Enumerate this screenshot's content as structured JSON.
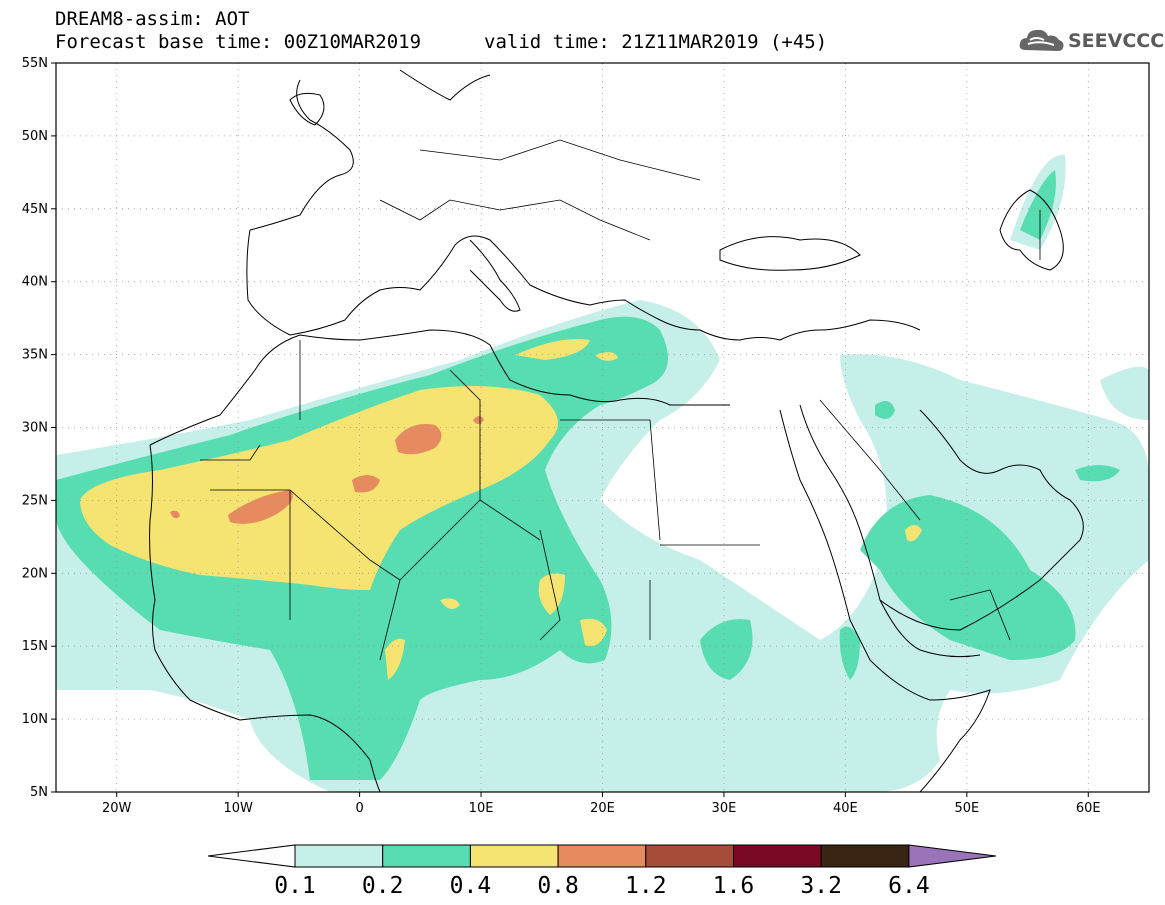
{
  "title": {
    "line1": "DREAM8-assim: AOT",
    "line2": "Forecast base time: 00Z10MAR2019",
    "valid": "valid time: 21Z11MAR2019 (+45)"
  },
  "logo": {
    "text": "SEEVCCC",
    "icon": "cloud-icon"
  },
  "map": {
    "lon_range": [
      -25,
      65
    ],
    "lat_range": [
      5,
      55
    ],
    "lat_ticks": [
      "5N",
      "10N",
      "15N",
      "20N",
      "25N",
      "30N",
      "35N",
      "40N",
      "45N",
      "50N",
      "55N"
    ],
    "lon_ticks": [
      "20W",
      "10W",
      "0",
      "10E",
      "20E",
      "30E",
      "40E",
      "50E",
      "60E"
    ]
  },
  "legend": {
    "labels": [
      "0.1",
      "0.2",
      "0.4",
      "0.8",
      "1.2",
      "1.6",
      "3.2",
      "6.4"
    ],
    "colors": [
      "#ffffff",
      "#c5efe8",
      "#58dcb1",
      "#f5e372",
      "#e68a5f",
      "#a84c3a",
      "#7a0a24",
      "#3a2414",
      "#9a73b8"
    ]
  }
}
